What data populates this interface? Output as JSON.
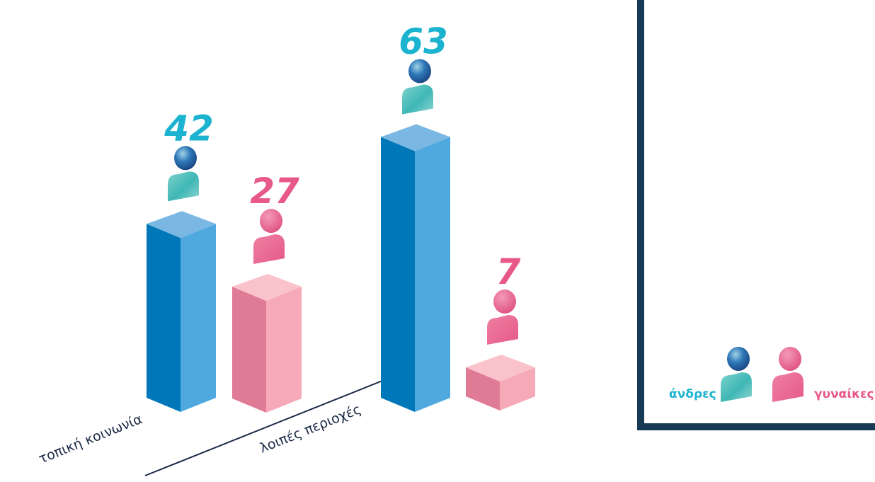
{
  "chart_data": {
    "type": "bar",
    "categories": [
      "τοπική κοινωνία",
      "λοιπές περιοχές"
    ],
    "series": [
      {
        "name": "άνδρες",
        "values": [
          42,
          63
        ]
      },
      {
        "name": "γυναίκες",
        "values": [
          27,
          7
        ]
      }
    ],
    "legend_position": "bottom-right"
  },
  "colors": {
    "men_front": "#0077b8",
    "men_side": "#4fa9df",
    "men_top": "#7ab8e3",
    "women_front": "#e07b96",
    "women_side": "#f6a9b6",
    "women_top": "#fac3cc",
    "men_label": "#1bb3cf",
    "women_label": "#e8588a",
    "frame": "#173a54",
    "axis_line": "#1b2a47"
  },
  "icons": {
    "men": "man-person-icon",
    "women": "woman-person-icon"
  }
}
